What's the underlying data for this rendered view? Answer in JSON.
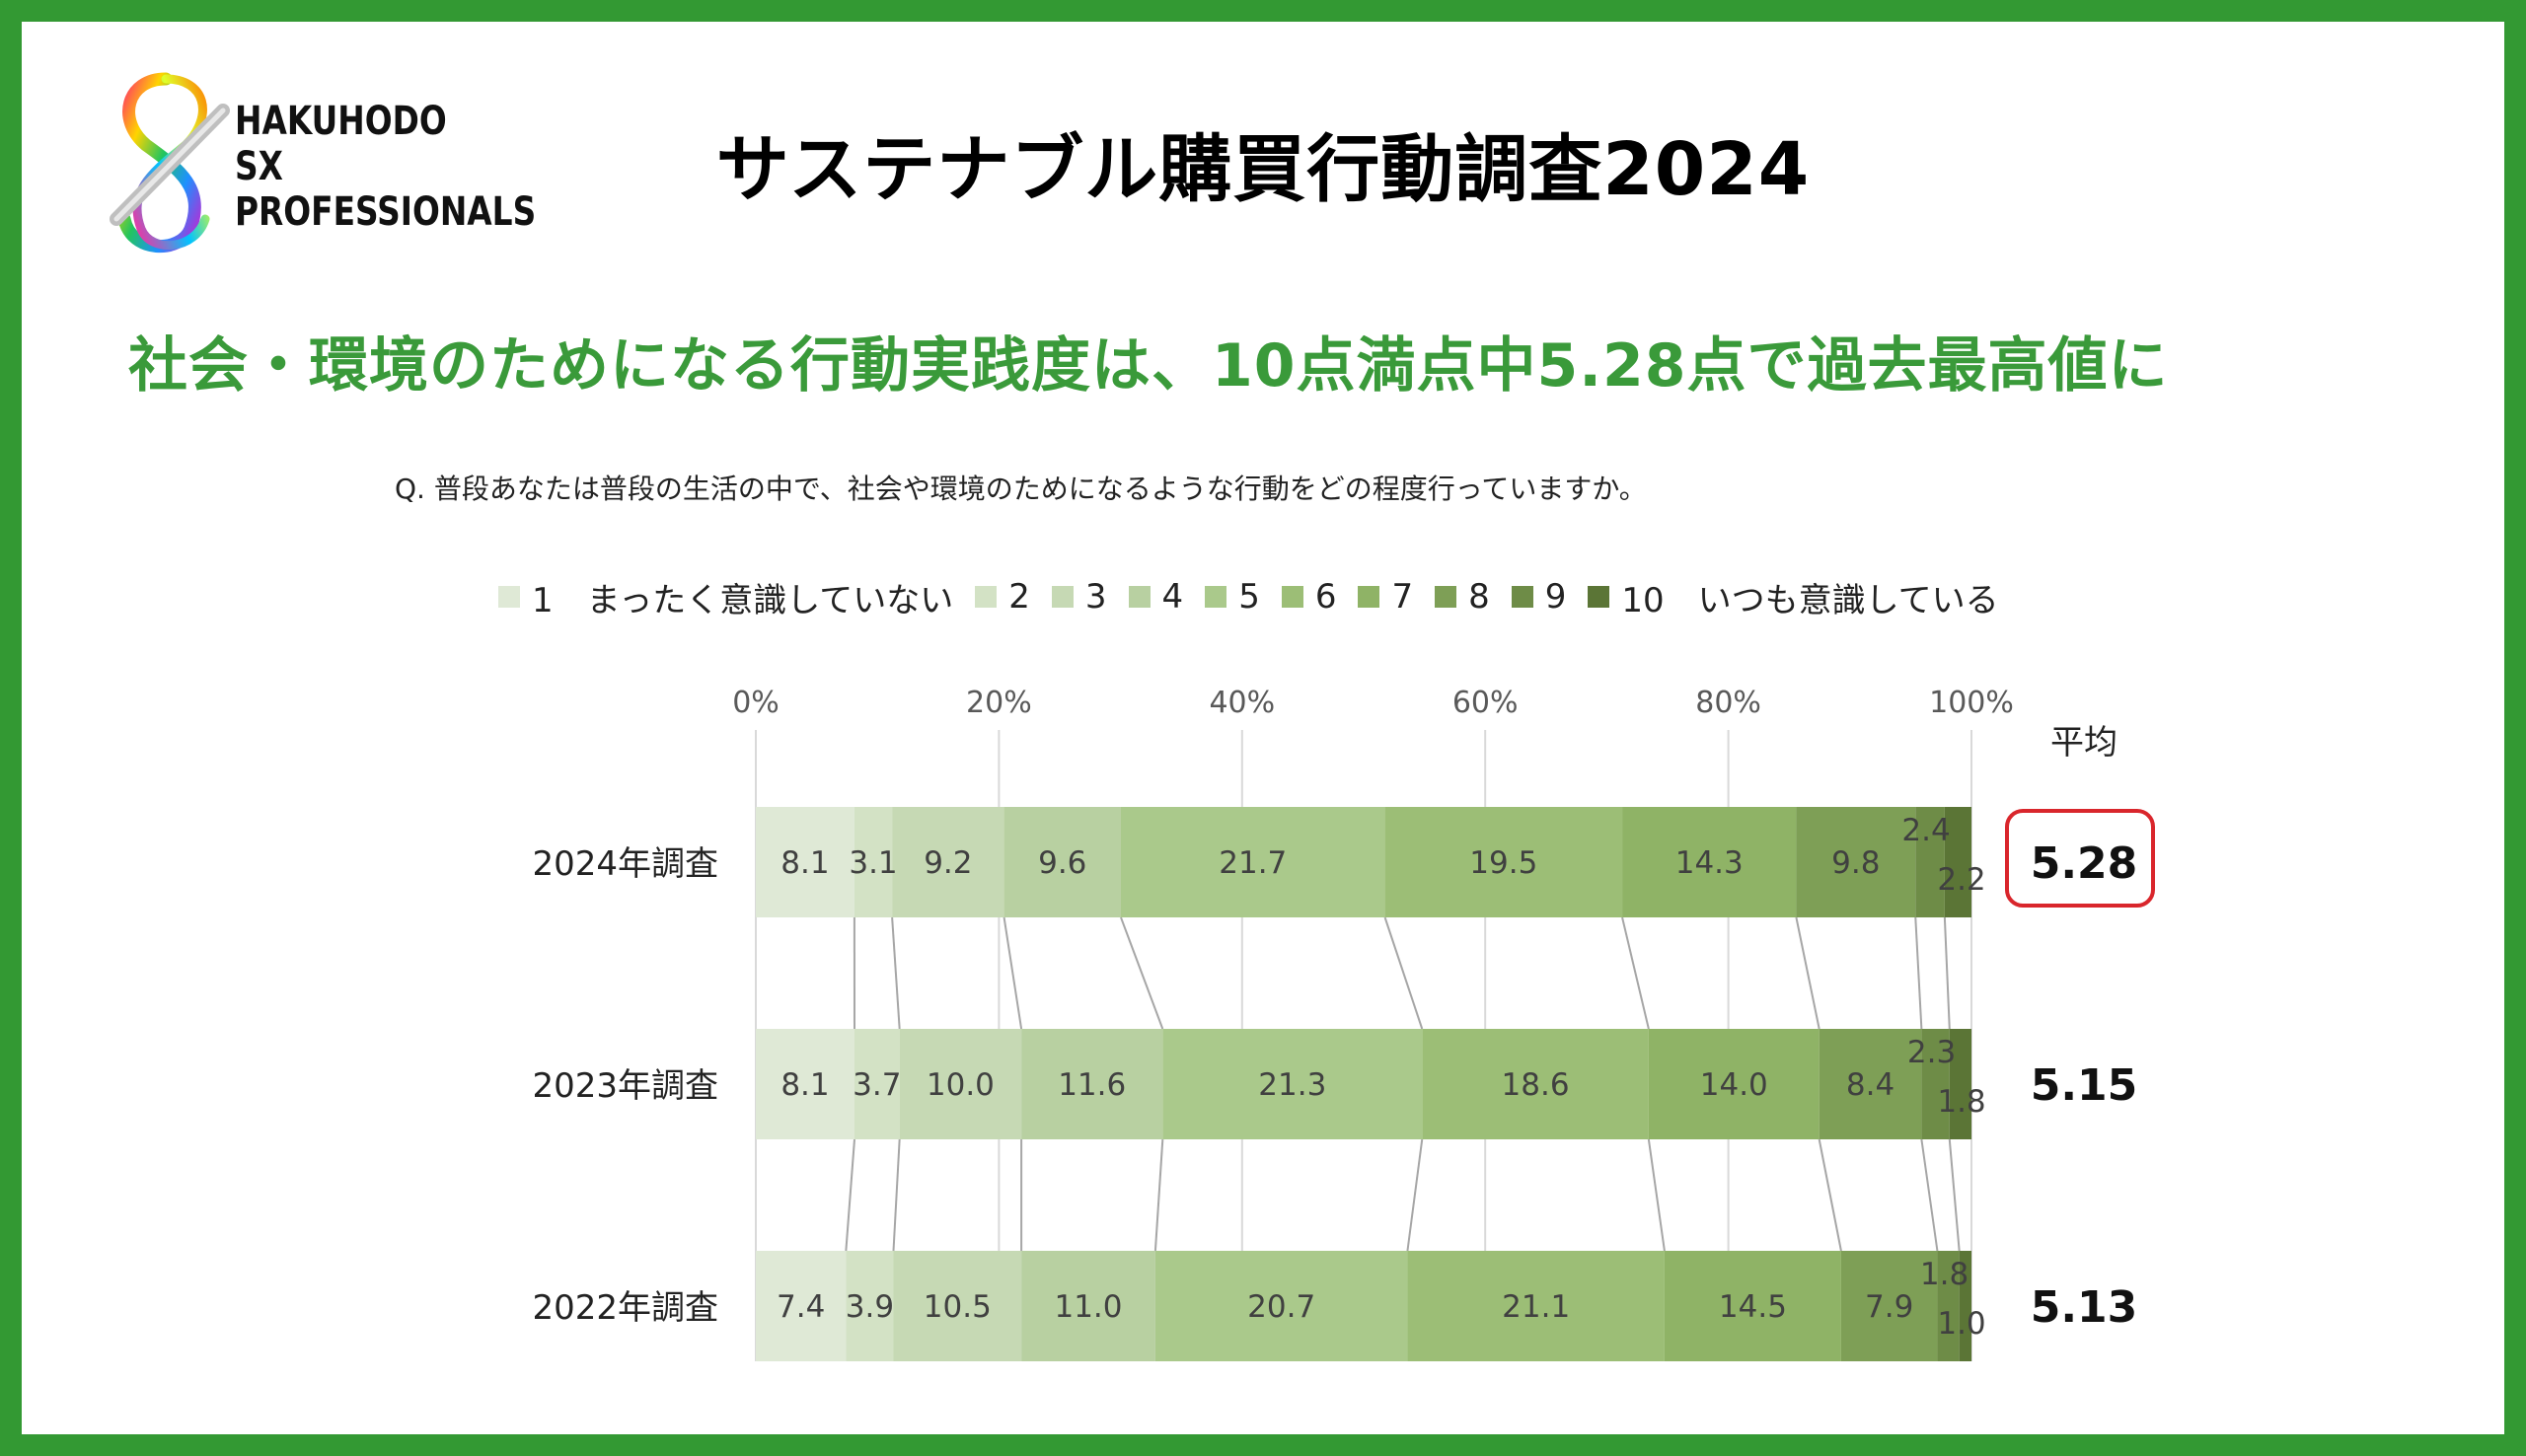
{
  "logo": {
    "line1": "HAKUHODO",
    "line2": "SX",
    "line3": "PROFESSIONALS"
  },
  "title": "サステナブル購買行動調査2024",
  "headline": "社会・環境のためになる行動実践度は、10点満点中5.28点で過去最高値に",
  "question": "Q. 普段あなたは普段の生活の中で、社会や環境のためになるような行動をどの程度行っていますか。",
  "colors": {
    "frame": "#339933",
    "headline": "#3a9a3a",
    "highlight": "#d9262c"
  },
  "chart_data": {
    "type": "bar",
    "orientation": "horizontal",
    "stacked": "100%",
    "categories": [
      "2024年調査",
      "2023年調査",
      "2022年調査"
    ],
    "x_ticks": [
      "0%",
      "20%",
      "40%",
      "60%",
      "80%",
      "100%"
    ],
    "xlim": [
      0,
      100
    ],
    "legend_position": "top",
    "series": [
      {
        "name": "1　まったく意識していない",
        "color": "#dfe9d6",
        "values": [
          8.1,
          8.1,
          7.4
        ]
      },
      {
        "name": "2",
        "color": "#d3e2c5",
        "values": [
          3.1,
          3.7,
          3.9
        ]
      },
      {
        "name": "3",
        "color": "#c6d9b4",
        "values": [
          9.2,
          10.0,
          10.5
        ]
      },
      {
        "name": "4",
        "color": "#b8d0a1",
        "values": [
          9.6,
          11.6,
          11.0
        ]
      },
      {
        "name": "5",
        "color": "#aac98b",
        "values": [
          21.7,
          21.3,
          20.7
        ]
      },
      {
        "name": "6",
        "color": "#9cbe76",
        "values": [
          19.5,
          18.6,
          21.1
        ]
      },
      {
        "name": "7",
        "color": "#8fb366",
        "values": [
          14.3,
          14.0,
          14.5
        ]
      },
      {
        "name": "8",
        "color": "#7e9f56",
        "values": [
          9.8,
          8.4,
          7.9
        ]
      },
      {
        "name": "9",
        "color": "#6e8c47",
        "values": [
          2.4,
          2.3,
          1.8
        ]
      },
      {
        "name": "10　いつも意識している",
        "color": "#5b7536",
        "values": [
          2.2,
          1.8,
          1.0
        ]
      }
    ],
    "average_label": "平均",
    "averages": [
      "5.28",
      "5.15",
      "5.13"
    ]
  }
}
